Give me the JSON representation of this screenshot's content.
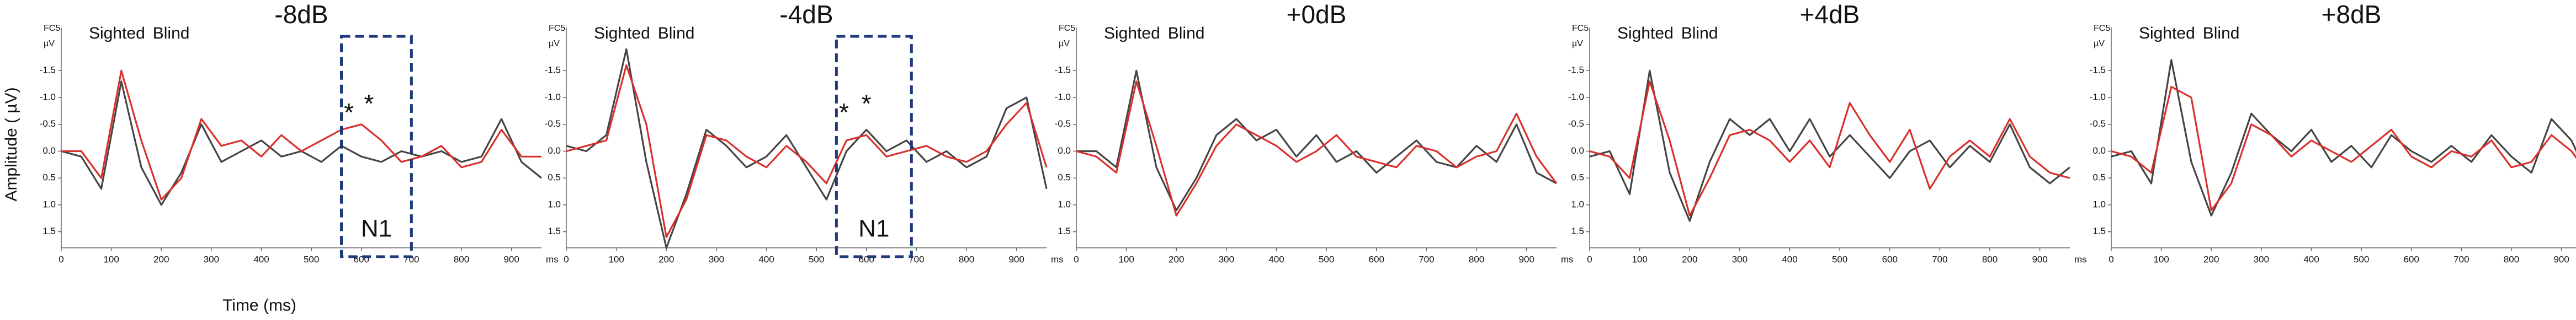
{
  "figure": {
    "ylabel": "Amplitude ( µV)",
    "xlabel": "Time (ms)"
  },
  "chart_data": [
    {
      "type": "line",
      "title": "-8dB",
      "channel": "FC5",
      "y_unit": "µV",
      "x_unit": "ms",
      "y_inverted": true,
      "x": [
        0,
        40,
        80,
        120,
        160,
        200,
        240,
        280,
        320,
        360,
        400,
        440,
        480,
        520,
        560,
        600,
        640,
        680,
        720,
        760,
        800,
        840,
        880,
        920,
        960
      ],
      "series": [
        {
          "name": "Sighted",
          "color": "#444444",
          "values": [
            0.0,
            0.1,
            0.7,
            -1.3,
            0.3,
            1.0,
            0.4,
            -0.5,
            0.2,
            0.0,
            -0.2,
            0.1,
            0.0,
            0.2,
            -0.1,
            0.1,
            0.2,
            0.0,
            0.1,
            0.0,
            0.2,
            0.1,
            -0.6,
            0.2,
            0.5
          ]
        },
        {
          "name": "Blind",
          "color": "#d9302c",
          "values": [
            0.0,
            0.0,
            0.5,
            -1.5,
            -0.2,
            0.9,
            0.5,
            -0.6,
            -0.1,
            -0.2,
            0.1,
            -0.3,
            0.0,
            -0.2,
            -0.4,
            -0.5,
            -0.2,
            0.2,
            0.1,
            -0.1,
            0.3,
            0.2,
            -0.4,
            0.1,
            0.1
          ]
        }
      ],
      "highlight": {
        "label": "N1",
        "x": [
          560,
          700
        ]
      },
      "annotations": [
        {
          "text": "*",
          "x": 575
        },
        {
          "text": "*",
          "x": 615
        }
      ],
      "xlim": [
        0,
        960
      ],
      "ylim": [
        -2.2,
        1.8
      ],
      "xticks": [
        0,
        100,
        200,
        300,
        400,
        500,
        600,
        700,
        800,
        900
      ],
      "yticks": [
        -1.5,
        {
          "value": -1,
          "label": "-1.0"
        },
        -0.5,
        {
          "value": 0,
          "label": "0.0"
        },
        0.5,
        {
          "value": 1,
          "label": "1.0"
        },
        1.5
      ]
    },
    {
      "type": "line",
      "title": "-4dB",
      "channel": "FC5",
      "y_unit": "µV",
      "x_unit": "ms",
      "y_inverted": true,
      "x": [
        0,
        40,
        80,
        120,
        160,
        200,
        240,
        280,
        320,
        360,
        400,
        440,
        480,
        520,
        560,
        600,
        640,
        680,
        720,
        760,
        800,
        840,
        880,
        920,
        960
      ],
      "series": [
        {
          "name": "Sighted",
          "color": "#444444",
          "values": [
            -0.1,
            0.0,
            -0.3,
            -1.9,
            0.2,
            1.8,
            0.8,
            -0.4,
            -0.1,
            0.3,
            0.1,
            -0.3,
            0.3,
            0.9,
            0.0,
            -0.4,
            0.0,
            -0.2,
            0.2,
            0.0,
            0.3,
            0.1,
            -0.8,
            -1.0,
            0.7
          ]
        },
        {
          "name": "Blind",
          "color": "#d9302c",
          "values": [
            0.0,
            -0.1,
            -0.2,
            -1.6,
            -0.5,
            1.6,
            0.9,
            -0.3,
            -0.2,
            0.1,
            0.3,
            -0.1,
            0.2,
            0.6,
            -0.2,
            -0.3,
            0.1,
            0.0,
            -0.1,
            0.1,
            0.2,
            0.0,
            -0.5,
            -0.9,
            0.3
          ]
        }
      ],
      "highlight": {
        "label": "N1",
        "x": [
          540,
          690
        ]
      },
      "annotations": [
        {
          "text": "*",
          "x": 555
        },
        {
          "text": "*",
          "x": 600
        }
      ],
      "xlim": [
        0,
        960
      ],
      "ylim": [
        -2.2,
        1.8
      ],
      "xticks": [
        0,
        100,
        200,
        300,
        400,
        500,
        600,
        700,
        800,
        900
      ],
      "yticks": [
        -1.5,
        {
          "value": -1,
          "label": "-1.0"
        },
        -0.5,
        {
          "value": 0,
          "label": "0.0"
        },
        0.5,
        {
          "value": 1,
          "label": "1.0"
        },
        1.5
      ]
    },
    {
      "type": "line",
      "title": "+0dB",
      "channel": "FC5",
      "y_unit": "µV",
      "x_unit": "ms",
      "y_inverted": true,
      "x": [
        0,
        40,
        80,
        120,
        160,
        200,
        240,
        280,
        320,
        360,
        400,
        440,
        480,
        520,
        560,
        600,
        640,
        680,
        720,
        760,
        800,
        840,
        880,
        920,
        960
      ],
      "series": [
        {
          "name": "Sighted",
          "color": "#444444",
          "values": [
            0.0,
            0.0,
            0.3,
            -1.5,
            0.3,
            1.1,
            0.5,
            -0.3,
            -0.6,
            -0.2,
            -0.4,
            0.1,
            -0.3,
            0.2,
            0.0,
            0.4,
            0.1,
            -0.2,
            0.2,
            0.3,
            -0.1,
            0.2,
            -0.5,
            0.4,
            0.6
          ]
        },
        {
          "name": "Blind",
          "color": "#d9302c",
          "values": [
            0.0,
            0.1,
            0.4,
            -1.3,
            -0.1,
            1.2,
            0.6,
            -0.1,
            -0.5,
            -0.3,
            -0.1,
            0.2,
            0.0,
            -0.3,
            0.1,
            0.2,
            0.3,
            -0.1,
            0.0,
            0.3,
            0.1,
            0.0,
            -0.7,
            0.1,
            0.6
          ]
        }
      ],
      "xlim": [
        0,
        960
      ],
      "ylim": [
        -2.2,
        1.8
      ],
      "xticks": [
        0,
        100,
        200,
        300,
        400,
        500,
        600,
        700,
        800,
        900
      ],
      "yticks": [
        -1.5,
        {
          "value": -1,
          "label": "-1.0"
        },
        -0.5,
        {
          "value": 0,
          "label": "0.0"
        },
        0.5,
        {
          "value": 1,
          "label": "1.0"
        },
        1.5
      ]
    },
    {
      "type": "line",
      "title": "+4dB",
      "channel": "FC5",
      "y_unit": "µV",
      "x_unit": "ms",
      "y_inverted": true,
      "x": [
        0,
        40,
        80,
        120,
        160,
        200,
        240,
        280,
        320,
        360,
        400,
        440,
        480,
        520,
        560,
        600,
        640,
        680,
        720,
        760,
        800,
        840,
        880,
        920,
        960
      ],
      "series": [
        {
          "name": "Sighted",
          "color": "#444444",
          "values": [
            0.1,
            0.0,
            0.8,
            -1.5,
            0.4,
            1.3,
            0.2,
            -0.6,
            -0.3,
            -0.6,
            0.0,
            -0.6,
            0.1,
            -0.3,
            0.1,
            0.5,
            0.0,
            -0.2,
            0.3,
            -0.1,
            0.2,
            -0.5,
            0.3,
            0.6,
            0.3
          ]
        },
        {
          "name": "Blind",
          "color": "#d9302c",
          "values": [
            0.0,
            0.1,
            0.5,
            -1.3,
            -0.2,
            1.2,
            0.5,
            -0.3,
            -0.4,
            -0.2,
            0.2,
            -0.2,
            0.3,
            -0.9,
            -0.3,
            0.2,
            -0.4,
            0.7,
            0.1,
            -0.2,
            0.1,
            -0.6,
            0.1,
            0.4,
            0.5
          ]
        }
      ],
      "xlim": [
        0,
        960
      ],
      "ylim": [
        -2.2,
        1.8
      ],
      "xticks": [
        0,
        100,
        200,
        300,
        400,
        500,
        600,
        700,
        800,
        900
      ],
      "yticks": [
        -1.5,
        {
          "value": -1,
          "label": "-1.0"
        },
        -0.5,
        {
          "value": 0,
          "label": "0.0"
        },
        0.5,
        {
          "value": 1,
          "label": "1.0"
        },
        1.5
      ]
    },
    {
      "type": "line",
      "title": "+8dB",
      "channel": "FC5",
      "y_unit": "µV",
      "x_unit": "ms",
      "y_inverted": true,
      "x": [
        0,
        40,
        80,
        120,
        160,
        200,
        240,
        280,
        320,
        360,
        400,
        440,
        480,
        520,
        560,
        600,
        640,
        680,
        720,
        760,
        800,
        840,
        880,
        920,
        960
      ],
      "series": [
        {
          "name": "Sighted",
          "color": "#444444",
          "values": [
            0.1,
            0.0,
            0.6,
            -1.7,
            0.2,
            1.2,
            0.4,
            -0.7,
            -0.3,
            0.0,
            -0.4,
            0.2,
            -0.1,
            0.3,
            -0.3,
            0.0,
            0.2,
            -0.1,
            0.2,
            -0.3,
            0.1,
            0.4,
            -0.6,
            -0.2,
            0.6
          ]
        },
        {
          "name": "Blind",
          "color": "#d9302c",
          "values": [
            0.0,
            0.1,
            0.4,
            -1.2,
            -1.0,
            1.1,
            0.6,
            -0.5,
            -0.3,
            0.1,
            -0.2,
            0.0,
            0.2,
            -0.1,
            -0.4,
            0.1,
            0.3,
            0.0,
            0.1,
            -0.2,
            0.3,
            0.2,
            -0.3,
            0.0,
            0.5
          ]
        }
      ],
      "xlim": [
        0,
        960
      ],
      "ylim": [
        -2.2,
        1.8
      ],
      "xticks": [
        0,
        100,
        200,
        300,
        400,
        500,
        600,
        700,
        800,
        900
      ],
      "yticks": [
        -1.5,
        {
          "value": -1,
          "label": "-1.0"
        },
        -0.5,
        {
          "value": 0,
          "label": "0.0"
        },
        0.5,
        {
          "value": 1,
          "label": "1.0"
        },
        1.5
      ]
    }
  ]
}
